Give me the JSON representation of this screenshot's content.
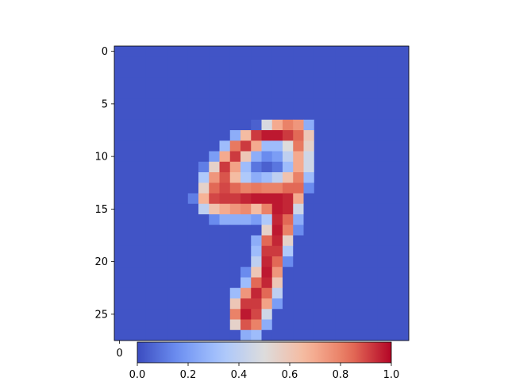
{
  "chart_data": {
    "type": "heatmap",
    "title": "",
    "xlabel": "",
    "ylabel": "",
    "colormap": "coolwarm",
    "colormap_stops": [
      "#3b4cc0",
      "#6f92f3",
      "#aac7fd",
      "#dddcdc",
      "#f7b89c",
      "#e7745b",
      "#b40426"
    ],
    "rows": 28,
    "cols": 28,
    "background_value": 0.02,
    "y_ticks": [
      "0",
      "5",
      "10",
      "15",
      "20",
      "25"
    ],
    "y_tick_values": [
      0,
      5,
      10,
      15,
      20,
      25
    ],
    "x_ticks": [
      "0"
    ],
    "x_tick_values": [
      0
    ],
    "colorbar": {
      "orientation": "horizontal",
      "range": [
        0,
        1
      ],
      "ticks": [
        "0.0",
        "0.2",
        "0.4",
        "0.6",
        "0.8",
        "1.0"
      ],
      "tick_values": [
        0,
        0.2,
        0.4,
        0.6,
        0.8,
        1.0
      ]
    },
    "cells": [
      [
        7,
        13,
        0.05
      ],
      [
        7,
        14,
        0.48
      ],
      [
        7,
        15,
        0.7
      ],
      [
        7,
        16,
        0.8
      ],
      [
        7,
        17,
        0.75
      ],
      [
        7,
        18,
        0.25
      ],
      [
        8,
        11,
        0.25
      ],
      [
        8,
        12,
        0.65
      ],
      [
        8,
        13,
        0.92
      ],
      [
        8,
        14,
        0.97
      ],
      [
        8,
        15,
        0.97
      ],
      [
        8,
        16,
        0.92
      ],
      [
        8,
        17,
        0.85
      ],
      [
        8,
        18,
        0.6
      ],
      [
        9,
        10,
        0.3
      ],
      [
        9,
        11,
        0.82
      ],
      [
        9,
        12,
        0.92
      ],
      [
        9,
        13,
        0.7
      ],
      [
        9,
        14,
        0.3
      ],
      [
        9,
        15,
        0.3
      ],
      [
        9,
        16,
        0.5
      ],
      [
        9,
        17,
        0.82
      ],
      [
        9,
        18,
        0.55
      ],
      [
        10,
        9,
        0.2
      ],
      [
        10,
        10,
        0.7
      ],
      [
        10,
        11,
        0.92
      ],
      [
        10,
        12,
        0.6
      ],
      [
        10,
        13,
        0.25
      ],
      [
        10,
        14,
        0.15
      ],
      [
        10,
        15,
        0.2
      ],
      [
        10,
        16,
        0.4
      ],
      [
        10,
        17,
        0.7
      ],
      [
        10,
        18,
        0.45
      ],
      [
        11,
        8,
        0.12
      ],
      [
        11,
        9,
        0.55
      ],
      [
        11,
        10,
        0.92
      ],
      [
        11,
        11,
        0.72
      ],
      [
        11,
        12,
        0.3
      ],
      [
        11,
        13,
        0.1
      ],
      [
        11,
        14,
        0.05
      ],
      [
        11,
        15,
        0.1
      ],
      [
        11,
        16,
        0.3
      ],
      [
        11,
        17,
        0.7
      ],
      [
        11,
        18,
        0.45
      ],
      [
        12,
        8,
        0.35
      ],
      [
        12,
        9,
        0.75
      ],
      [
        12,
        10,
        0.88
      ],
      [
        12,
        11,
        0.65
      ],
      [
        12,
        12,
        0.35
      ],
      [
        12,
        13,
        0.25
      ],
      [
        12,
        14,
        0.3
      ],
      [
        12,
        15,
        0.4
      ],
      [
        12,
        16,
        0.62
      ],
      [
        12,
        17,
        0.8
      ],
      [
        12,
        18,
        0.3
      ],
      [
        13,
        8,
        0.55
      ],
      [
        13,
        9,
        0.85
      ],
      [
        13,
        10,
        0.9
      ],
      [
        13,
        11,
        0.85
      ],
      [
        13,
        12,
        0.8
      ],
      [
        13,
        13,
        0.82
      ],
      [
        13,
        14,
        0.8
      ],
      [
        13,
        15,
        0.8
      ],
      [
        13,
        16,
        0.85
      ],
      [
        13,
        17,
        0.85
      ],
      [
        13,
        18,
        0.15
      ],
      [
        14,
        7,
        0.12
      ],
      [
        14,
        8,
        0.68
      ],
      [
        14,
        9,
        0.9
      ],
      [
        14,
        10,
        0.92
      ],
      [
        14,
        11,
        0.92
      ],
      [
        14,
        12,
        0.95
      ],
      [
        14,
        13,
        0.97
      ],
      [
        14,
        14,
        0.97
      ],
      [
        14,
        15,
        0.97
      ],
      [
        14,
        16,
        0.95
      ],
      [
        14,
        17,
        0.7
      ],
      [
        15,
        8,
        0.4
      ],
      [
        15,
        9,
        0.62
      ],
      [
        15,
        10,
        0.7
      ],
      [
        15,
        11,
        0.75
      ],
      [
        15,
        12,
        0.78
      ],
      [
        15,
        13,
        0.65
      ],
      [
        15,
        14,
        0.8
      ],
      [
        15,
        15,
        0.97
      ],
      [
        15,
        16,
        0.95
      ],
      [
        15,
        17,
        0.45
      ],
      [
        16,
        9,
        0.15
      ],
      [
        16,
        10,
        0.25
      ],
      [
        16,
        11,
        0.25
      ],
      [
        16,
        12,
        0.25
      ],
      [
        16,
        13,
        0.2
      ],
      [
        16,
        14,
        0.35
      ],
      [
        16,
        15,
        0.95
      ],
      [
        16,
        16,
        0.85
      ],
      [
        16,
        17,
        0.25
      ],
      [
        17,
        14,
        0.55
      ],
      [
        17,
        15,
        0.97
      ],
      [
        17,
        16,
        0.8
      ],
      [
        17,
        17,
        0.15
      ],
      [
        18,
        13,
        0.25
      ],
      [
        18,
        14,
        0.85
      ],
      [
        18,
        15,
        0.95
      ],
      [
        18,
        16,
        0.55
      ],
      [
        19,
        13,
        0.3
      ],
      [
        19,
        14,
        0.92
      ],
      [
        19,
        15,
        0.92
      ],
      [
        19,
        16,
        0.35
      ],
      [
        20,
        13,
        0.4
      ],
      [
        20,
        14,
        0.95
      ],
      [
        20,
        15,
        0.85
      ],
      [
        20,
        16,
        0.15
      ],
      [
        21,
        12,
        0.15
      ],
      [
        21,
        13,
        0.6
      ],
      [
        21,
        14,
        0.97
      ],
      [
        21,
        15,
        0.75
      ],
      [
        22,
        12,
        0.3
      ],
      [
        22,
        13,
        0.85
      ],
      [
        22,
        14,
        0.95
      ],
      [
        22,
        15,
        0.6
      ],
      [
        23,
        11,
        0.3
      ],
      [
        23,
        12,
        0.75
      ],
      [
        23,
        13,
        0.95
      ],
      [
        23,
        14,
        0.85
      ],
      [
        23,
        15,
        0.4
      ],
      [
        24,
        11,
        0.6
      ],
      [
        24,
        12,
        0.92
      ],
      [
        24,
        13,
        0.92
      ],
      [
        24,
        14,
        0.72
      ],
      [
        24,
        15,
        0.2
      ],
      [
        25,
        11,
        0.8
      ],
      [
        25,
        12,
        0.97
      ],
      [
        25,
        13,
        0.9
      ],
      [
        25,
        14,
        0.45
      ],
      [
        26,
        11,
        0.55
      ],
      [
        26,
        12,
        0.88
      ],
      [
        26,
        13,
        0.8
      ],
      [
        26,
        14,
        0.25
      ],
      [
        27,
        12,
        0.25
      ],
      [
        27,
        13,
        0.3
      ]
    ]
  }
}
